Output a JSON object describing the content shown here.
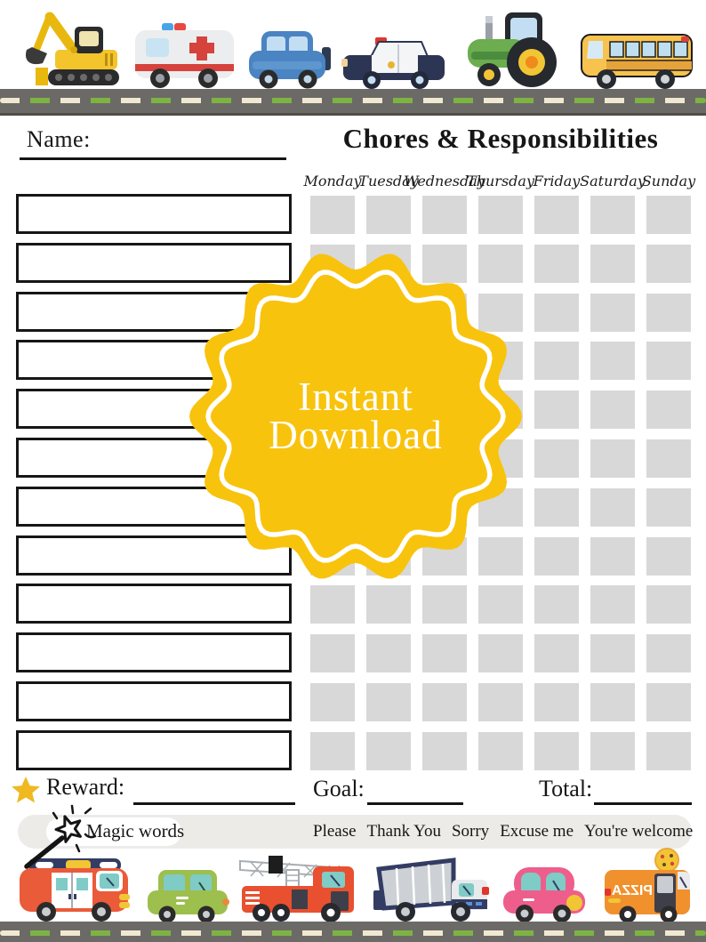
{
  "header": {
    "name_label": "Name:",
    "title": "Chores & Responsibilities"
  },
  "days": [
    "Monday",
    "Tuesday",
    "Wednesday",
    "Thursday",
    "Friday",
    "Saturday",
    "Sunday"
  ],
  "grid": {
    "rows": 12,
    "cols": 7
  },
  "chore_list": {
    "rows": 12
  },
  "badge": {
    "line1": "Instant",
    "line2": "Download"
  },
  "footer": {
    "reward_label": "Reward:",
    "goal_label": "Goal:",
    "total_label": "Total:"
  },
  "magic": {
    "label": "Magic words",
    "words": [
      "Please",
      "Thank You",
      "Sorry",
      "Excuse me",
      "You're welcome"
    ]
  },
  "vehicles": {
    "top": [
      "excavator",
      "ambulance",
      "car",
      "police car",
      "tractor",
      "school bus"
    ],
    "bottom": [
      "rescue van",
      "car",
      "fire truck",
      "garbage truck",
      "car",
      "pizza truck"
    ],
    "pizza_label": "PIZZA"
  },
  "colors": {
    "badge_yellow": "#F8C30D",
    "grid_cell": "#D8D8D8",
    "road": "#6C6A67",
    "dash_cream": "#F0E8D1",
    "dash_green": "#7DB343",
    "star_gold": "#F0B921",
    "box_border": "#161616"
  }
}
